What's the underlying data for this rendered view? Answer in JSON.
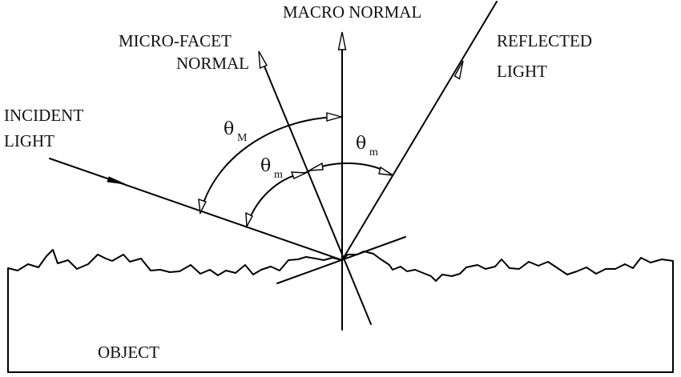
{
  "labels": {
    "macro_normal": "MACRO NORMAL",
    "micro_facet_normal_line1": "MICRO-FACET",
    "micro_facet_normal_line2": "NORMAL",
    "reflected_light_line1": "REFLECTED",
    "reflected_light_line2": "LIGHT",
    "incident_light_line1": "INCIDENT",
    "incident_light_line2": "LIGHT",
    "object": "OBJECT"
  },
  "angles": {
    "theta_symbol": "θ",
    "theta_M_sub": "M",
    "theta_m_left_sub": "m",
    "theta_m_right_sub": "m"
  },
  "colors": {
    "ink": "#000000",
    "background": "#ffffff"
  }
}
